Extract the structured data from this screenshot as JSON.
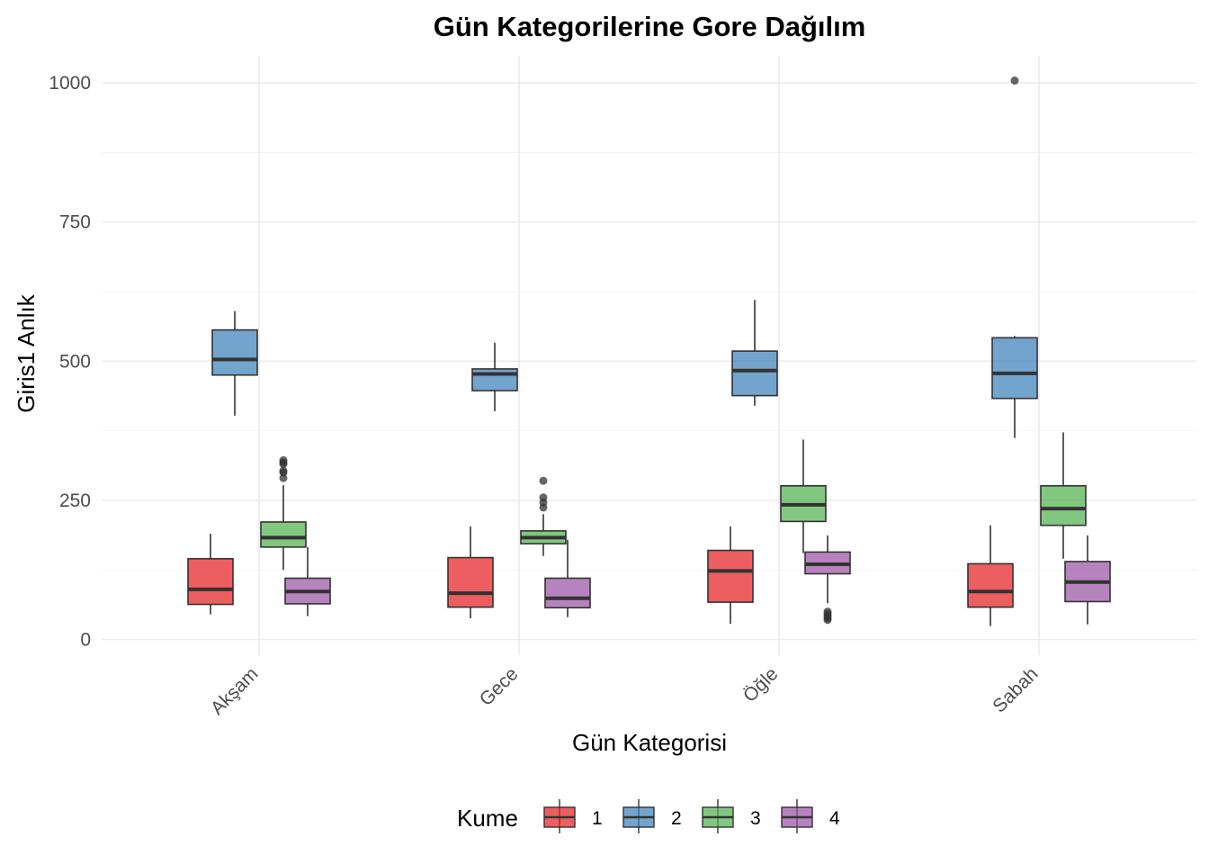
{
  "chart_data": {
    "type": "boxplot",
    "title": "Gün Kategorilerine Gore Dağılım",
    "xlabel": "Gün Kategorisi",
    "ylabel": "Giris1 Anlık",
    "ylim": [
      -50,
      1030
    ],
    "yticks": [
      0,
      250,
      500,
      750,
      1000
    ],
    "grid": true,
    "legend": {
      "title": "Kume",
      "position": "bottom",
      "entries": [
        "1",
        "2",
        "3",
        "4"
      ]
    },
    "colors": {
      "1": "#E41A1C",
      "2": "#377EB8",
      "3": "#4DAF4A",
      "4": "#984EA3"
    },
    "categories": [
      "Akşam",
      "Gece",
      "Öğle",
      "Sabah"
    ],
    "series": [
      {
        "name": "1",
        "boxes": [
          {
            "min": 45,
            "q1": 63,
            "median": 90,
            "q3": 145,
            "max": 190,
            "outliers": []
          },
          {
            "min": 38,
            "q1": 58,
            "median": 83,
            "q3": 147,
            "max": 203,
            "outliers": []
          },
          {
            "min": 28,
            "q1": 67,
            "median": 123,
            "q3": 160,
            "max": 203,
            "outliers": []
          },
          {
            "min": 24,
            "q1": 58,
            "median": 86,
            "q3": 136,
            "max": 205,
            "outliers": []
          }
        ]
      },
      {
        "name": "2",
        "boxes": [
          {
            "min": 402,
            "q1": 475,
            "median": 503,
            "q3": 556,
            "max": 590,
            "outliers": []
          },
          {
            "min": 410,
            "q1": 447,
            "median": 477,
            "q3": 486,
            "max": 533,
            "outliers": []
          },
          {
            "min": 420,
            "q1": 438,
            "median": 483,
            "q3": 518,
            "max": 610,
            "outliers": []
          },
          {
            "min": 362,
            "q1": 433,
            "median": 478,
            "q3": 542,
            "max": 545,
            "outliers": [
              1004
            ]
          }
        ]
      },
      {
        "name": "3",
        "boxes": [
          {
            "min": 125,
            "q1": 166,
            "median": 183,
            "q3": 211,
            "max": 277,
            "outliers": [
              290,
              300,
              303,
              315,
              318,
              322
            ]
          },
          {
            "min": 150,
            "q1": 172,
            "median": 183,
            "q3": 195,
            "max": 225,
            "outliers": [
              237,
              246,
              255,
              285
            ]
          },
          {
            "min": 155,
            "q1": 212,
            "median": 242,
            "q3": 276,
            "max": 359,
            "outliers": []
          },
          {
            "min": 145,
            "q1": 205,
            "median": 235,
            "q3": 276,
            "max": 372,
            "outliers": []
          }
        ]
      },
      {
        "name": "4",
        "boxes": [
          {
            "min": 42,
            "q1": 64,
            "median": 86,
            "q3": 110,
            "max": 166,
            "outliers": []
          },
          {
            "min": 40,
            "q1": 57,
            "median": 74,
            "q3": 110,
            "max": 179,
            "outliers": []
          },
          {
            "min": 65,
            "q1": 118,
            "median": 135,
            "q3": 157,
            "max": 187,
            "outliers": [
              35,
              38,
              42,
              46,
              50
            ]
          },
          {
            "min": 27,
            "q1": 68,
            "median": 103,
            "q3": 140,
            "max": 187,
            "outliers": []
          }
        ]
      }
    ]
  }
}
